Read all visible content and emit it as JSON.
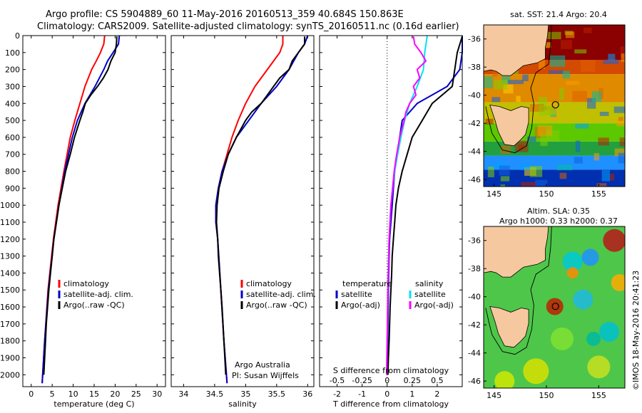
{
  "header": {
    "line1": "Argo profile: CS 5904889_60 11-May-2016 20160513_359 40.684S 150.863E",
    "line2": "Climatology: CARS2009. Satellite-adjusted climatology: synTS_20160511.nc (0.16d earlier)"
  },
  "sst_map": {
    "title": "sat. SST: 21.4 Argo: 20.4"
  },
  "sla_map": {
    "title1": "Altim. SLA: 0.35",
    "title2": "Argo h1000: 0.33 h2000: 0.37"
  },
  "credit": "©IMOS 18-May-2016 20:41:23",
  "annotations": {
    "argo_australia": "Argo Australia",
    "pi": "PI: Susan Wijffels"
  },
  "colors": {
    "climatology": "#ff0000",
    "satellite": "#0000cc",
    "argo": "#000000",
    "s_satellite": "#00e5ee",
    "s_argo": "#ff00ff",
    "land": "#f5c8a0"
  },
  "chart_data": [
    {
      "type": "line",
      "xlabel": "temperature (deg C)",
      "ylabel": "",
      "xlim": [
        -2,
        32
      ],
      "ylim": [
        2070,
        0
      ],
      "xticks": [
        "0",
        "5",
        "10",
        "15",
        "20",
        "25",
        "30"
      ],
      "xtick_values": [
        0,
        5,
        10,
        15,
        20,
        25,
        30
      ],
      "yticks": [
        "0",
        "100",
        "200",
        "300",
        "400",
        "500",
        "600",
        "700",
        "800",
        "900",
        "1000",
        "1100",
        "1200",
        "1300",
        "1400",
        "1500",
        "1600",
        "1700",
        "1800",
        "1900",
        "2000"
      ],
      "ytick_values": [
        0,
        100,
        200,
        300,
        400,
        500,
        600,
        700,
        800,
        900,
        1000,
        1100,
        1200,
        1300,
        1400,
        1500,
        1600,
        1700,
        1800,
        1900,
        2000
      ],
      "legend": [
        "climatology",
        "satellite-adj. clim.",
        "Argo(..raw -QC)"
      ],
      "series": [
        {
          "name": "climatology",
          "depth": [
            0,
            50,
            100,
            150,
            200,
            300,
            400,
            500,
            600,
            800,
            1000,
            1200,
            1500,
            1800,
            2050
          ],
          "values": [
            17.5,
            17.3,
            16.5,
            15.5,
            14.4,
            12.8,
            11.6,
            10.4,
            9.3,
            7.8,
            6.4,
            5.3,
            4.0,
            3.2,
            2.6
          ]
        },
        {
          "name": "satellite-adj. clim.",
          "depth": [
            0,
            50,
            100,
            150,
            200,
            300,
            400,
            500,
            600,
            800,
            1000,
            1200,
            1500,
            1800,
            2050
          ],
          "values": [
            21.0,
            20.8,
            19.5,
            18.2,
            17.3,
            15.2,
            12.8,
            11.0,
            9.8,
            8.0,
            6.6,
            5.4,
            4.1,
            3.2,
            2.6
          ]
        },
        {
          "name": "Argo(..raw -QC)",
          "depth": [
            5,
            50,
            100,
            150,
            200,
            250,
            300,
            350,
            400,
            450,
            500,
            600,
            700,
            800,
            900,
            1000,
            1100,
            1200,
            1300,
            1400,
            1500,
            1600,
            1700,
            1800,
            1900,
            2000
          ],
          "values": [
            20.4,
            20.3,
            20.0,
            19.0,
            18.3,
            17.2,
            15.8,
            14.2,
            12.9,
            12.3,
            11.6,
            10.3,
            9.3,
            8.2,
            7.4,
            6.6,
            6.0,
            5.4,
            5.0,
            4.6,
            4.2,
            3.9,
            3.6,
            3.4,
            3.2,
            3.0
          ]
        }
      ]
    },
    {
      "type": "line",
      "xlabel": "salinity",
      "ylabel": "",
      "xlim": [
        33.8,
        36.1
      ],
      "ylim": [
        2070,
        0
      ],
      "xticks": [
        "34",
        "34.5",
        "35",
        "35.5",
        "36"
      ],
      "xtick_values": [
        34,
        34.5,
        35,
        35.5,
        36
      ],
      "legend": [
        "climatology",
        "satellite-adj. clim.",
        "Argo(..raw -QC)"
      ],
      "series": [
        {
          "name": "climatology",
          "depth": [
            0,
            50,
            100,
            200,
            300,
            400,
            500,
            600,
            700,
            800,
            900,
            1000,
            1100,
            1200,
            1500,
            1800,
            2050
          ],
          "values": [
            35.6,
            35.6,
            35.55,
            35.35,
            35.15,
            35.0,
            34.88,
            34.78,
            34.7,
            34.62,
            34.56,
            34.52,
            34.52,
            34.55,
            34.6,
            34.65,
            34.7
          ]
        },
        {
          "name": "satellite-adj. clim.",
          "depth": [
            0,
            50,
            100,
            200,
            300,
            400,
            500,
            600,
            700,
            800,
            900,
            1000,
            1100,
            1200,
            1500,
            1800,
            2050
          ],
          "values": [
            36.0,
            35.95,
            35.85,
            35.7,
            35.5,
            35.25,
            35.05,
            34.85,
            34.72,
            34.62,
            34.56,
            34.52,
            34.52,
            34.55,
            34.6,
            34.65,
            34.7
          ]
        },
        {
          "name": "Argo(..raw -QC)",
          "depth": [
            5,
            50,
            100,
            150,
            200,
            250,
            300,
            350,
            400,
            450,
            500,
            600,
            700,
            800,
            900,
            1000,
            1100,
            1200,
            1300,
            1400,
            1500,
            1600,
            1800,
            2000
          ],
          "values": [
            35.95,
            35.95,
            35.85,
            35.75,
            35.7,
            35.55,
            35.45,
            35.35,
            35.25,
            35.1,
            35.0,
            34.85,
            34.72,
            34.64,
            34.57,
            34.54,
            34.53,
            34.55,
            34.56,
            34.58,
            34.6,
            34.62,
            34.65,
            34.68
          ]
        }
      ]
    },
    {
      "type": "line",
      "xlabel": "T difference from climatology",
      "xlabel2": "S difference from climatology",
      "xlim": [
        -2.7,
        3.0
      ],
      "ylim": [
        2070,
        0
      ],
      "xticks": [
        "-2",
        "-1",
        "0",
        "1",
        "2"
      ],
      "xtick_values": [
        -2,
        -1,
        0,
        1,
        2
      ],
      "xticks_s": [
        "-0.5",
        "-0.25",
        "0",
        "0.25",
        "0.5"
      ],
      "xtick_s_values": [
        -0.5,
        -0.25,
        0,
        0.25,
        0.5
      ],
      "legend_t": [
        "temperature",
        "satellite",
        "Argo(-adj)"
      ],
      "legend_s": [
        "salinity",
        "satellite",
        "Argo(-adj)"
      ],
      "series": [
        {
          "name": "satellite",
          "depth": [
            0,
            100,
            200,
            300,
            400,
            500,
            600,
            700,
            800,
            900,
            1000,
            1100,
            1200,
            1300,
            1500,
            1700,
            2000
          ],
          "values": [
            3.0,
            3.0,
            2.9,
            2.4,
            1.2,
            0.6,
            0.5,
            0.4,
            0.3,
            0.25,
            0.2,
            0.15,
            0.1,
            0.08,
            0.05,
            0.03,
            0.0
          ]
        },
        {
          "name": "Argo(-adj)",
          "depth": [
            5,
            100,
            200,
            300,
            400,
            500,
            600,
            700,
            800,
            900,
            1000,
            1100,
            1200,
            1300,
            1400,
            1500,
            1600,
            1700,
            1800,
            1900,
            2000
          ],
          "values": [
            3.0,
            2.8,
            2.7,
            2.6,
            1.8,
            1.4,
            1.0,
            0.8,
            0.6,
            0.45,
            0.35,
            0.3,
            0.25,
            0.2,
            0.18,
            0.15,
            0.12,
            0.1,
            0.08,
            0.05,
            0.03
          ]
        },
        {
          "name": "salinity satellite",
          "depth": [
            0,
            100,
            200,
            300,
            400,
            500,
            600,
            700,
            800,
            900,
            1000,
            1200,
            1500,
            1800,
            2000
          ],
          "values": [
            1.6,
            1.5,
            1.45,
            1.2,
            0.9,
            0.7,
            0.55,
            0.42,
            0.3,
            0.22,
            0.15,
            0.08,
            0.03,
            0.0,
            -0.02
          ]
        },
        {
          "name": "salinity Argo(-adj)",
          "depth": [
            5,
            50,
            100,
            150,
            200,
            250,
            300,
            350,
            400,
            450,
            500,
            600,
            700,
            800,
            1000,
            1200,
            1500,
            2000
          ],
          "values": [
            1.05,
            1.1,
            1.35,
            1.55,
            1.2,
            1.3,
            1.05,
            1.15,
            0.9,
            0.75,
            0.68,
            0.5,
            0.38,
            0.28,
            0.15,
            0.08,
            0.03,
            -0.02
          ]
        }
      ]
    },
    {
      "type": "heatmap",
      "title": "sat. SST: 21.4 Argo: 20.4",
      "xlim": [
        144,
        157.5
      ],
      "ylim": [
        -46.5,
        -35
      ],
      "xticks": [
        "145",
        "150",
        "155"
      ],
      "xtick_values": [
        145,
        150,
        155
      ],
      "yticks": [
        "-36",
        "-38",
        "-40",
        "-42",
        "-44",
        "-46"
      ],
      "ytick_values": [
        -36,
        -38,
        -40,
        -42,
        -44,
        -46
      ],
      "argo_position": {
        "lon": 150.863,
        "lat": -40.684
      }
    },
    {
      "type": "heatmap",
      "title": "Altim. SLA: 0.35",
      "xlim": [
        144,
        157.5
      ],
      "ylim": [
        -46.5,
        -35
      ],
      "xticks": [
        "145",
        "150",
        "155"
      ],
      "xtick_values": [
        145,
        150,
        155
      ],
      "yticks": [
        "-36",
        "-38",
        "-40",
        "-42",
        "-44",
        "-46"
      ],
      "ytick_values": [
        -36,
        -38,
        -40,
        -42,
        -44,
        -46
      ],
      "argo_position": {
        "lon": 150.863,
        "lat": -40.684
      }
    }
  ]
}
